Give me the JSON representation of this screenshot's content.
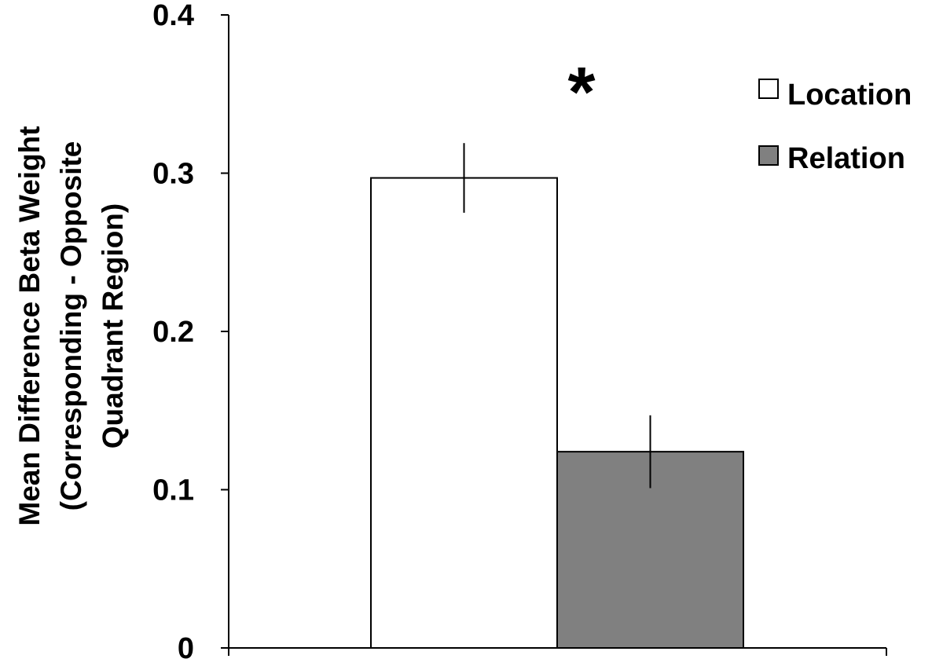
{
  "chart_data": {
    "type": "bar",
    "title": "",
    "xlabel": "",
    "ylabel_lines": [
      "Mean Difference Beta Weight",
      "(Corresponding - Opposite",
      "Quadrant Region)"
    ],
    "ylim": [
      0,
      0.4
    ],
    "yticks": [
      "0",
      "0.1",
      "0.2",
      "0.3",
      "0.4"
    ],
    "ytick_values": [
      0,
      0.1,
      0.2,
      0.3,
      0.4
    ],
    "series": [
      {
        "name": "Location",
        "value": 0.297,
        "error": 0.022,
        "color": "#ffffff"
      },
      {
        "name": "Relation",
        "value": 0.124,
        "error": 0.023,
        "color": "#808080"
      }
    ],
    "legend_position": "top-right",
    "annotations": [
      {
        "text": "*",
        "target": "between bars"
      }
    ],
    "grid": false
  }
}
